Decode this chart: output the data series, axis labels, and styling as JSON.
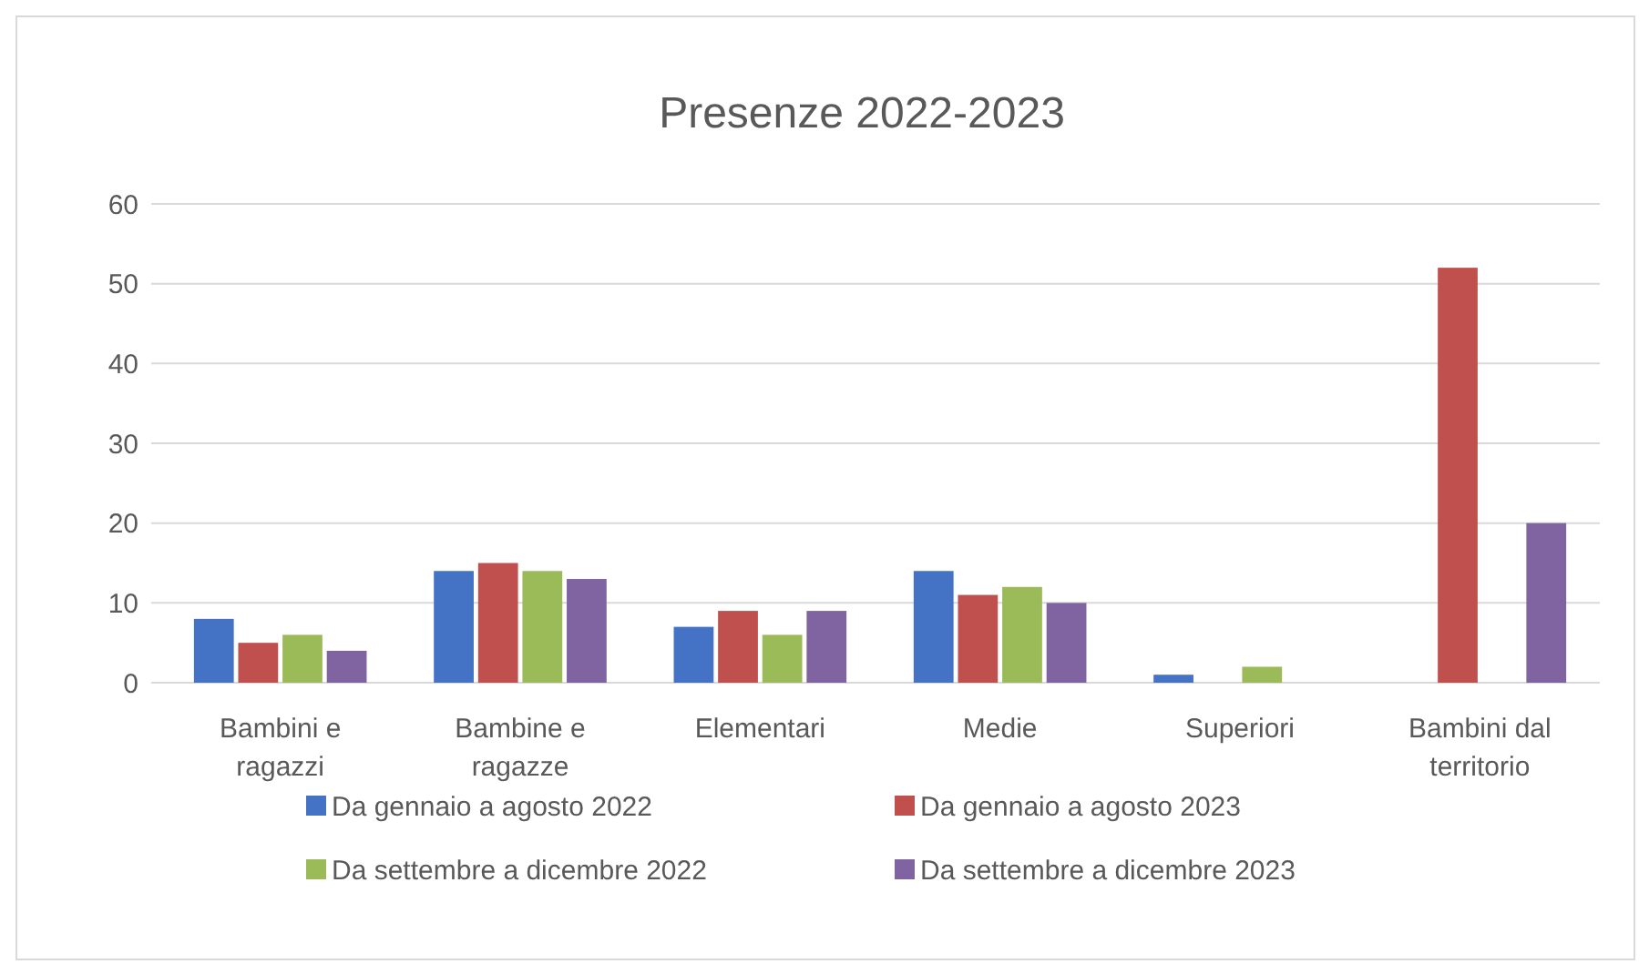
{
  "chart_data": {
    "type": "bar",
    "title": "Presenze 2022-2023",
    "categories": [
      "Bambini e ragazzi",
      "Bambine e ragazze",
      "Elementari",
      "Medie",
      "Superiori",
      "Bambini dal territorio"
    ],
    "series": [
      {
        "name": "Da gennaio a agosto 2022",
        "color": "#4472c4",
        "values": [
          8,
          14,
          7,
          14,
          1,
          0
        ]
      },
      {
        "name": "Da gennaio a agosto 2023",
        "color": "#c0504d",
        "values": [
          5,
          15,
          9,
          11,
          0,
          52
        ]
      },
      {
        "name": "Da settembre a dicembre 2022",
        "color": "#9bbb59",
        "values": [
          6,
          14,
          6,
          12,
          2,
          0
        ]
      },
      {
        "name": "Da settembre a dicembre 2023",
        "color": "#8064a2",
        "values": [
          4,
          13,
          9,
          10,
          0,
          20
        ]
      }
    ],
    "ylim": [
      0,
      60
    ],
    "yticks": [
      0,
      10,
      20,
      30,
      40,
      50,
      60
    ],
    "grid": "y",
    "legend": "bottom"
  }
}
